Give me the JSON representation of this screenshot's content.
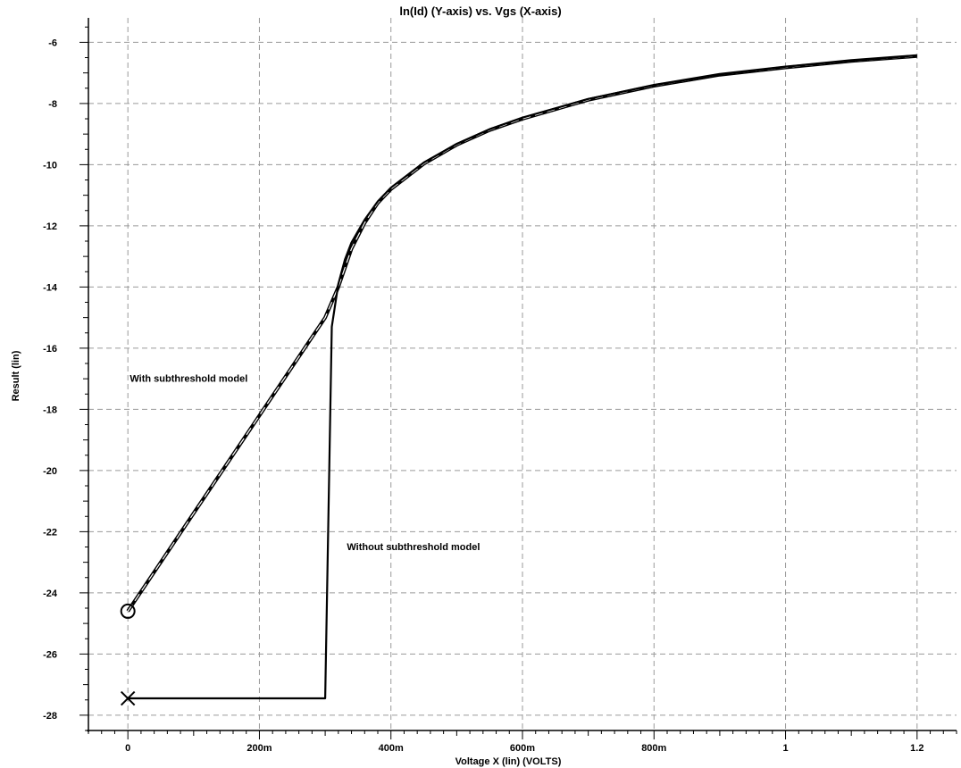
{
  "chart_data": {
    "type": "line",
    "title": "ln(Id) (Y-axis) vs. Vgs (X-axis)",
    "xlabel": "Voltage X (lin) (VOLTS)",
    "ylabel": "Result (lin)",
    "xlim": [
      -0.06,
      1.26
    ],
    "ylim": [
      -28.5,
      -5.2
    ],
    "grid": true,
    "x_ticks": [
      {
        "value": 0,
        "label": "0"
      },
      {
        "value": 0.2,
        "label": "200m"
      },
      {
        "value": 0.4,
        "label": "400m"
      },
      {
        "value": 0.6,
        "label": "600m"
      },
      {
        "value": 0.8,
        "label": "800m"
      },
      {
        "value": 1.0,
        "label": "1"
      },
      {
        "value": 1.2,
        "label": "1.2"
      }
    ],
    "y_ticks": [
      {
        "value": -6,
        "label": "-6"
      },
      {
        "value": -8,
        "label": "-8"
      },
      {
        "value": -10,
        "label": "-10"
      },
      {
        "value": -12,
        "label": "-12"
      },
      {
        "value": -14,
        "label": "-14"
      },
      {
        "value": -16,
        "label": "-16"
      },
      {
        "value": -18,
        "label": "-18"
      },
      {
        "value": -20,
        "label": "-20"
      },
      {
        "value": -22,
        "label": "-22"
      },
      {
        "value": -24,
        "label": "-24"
      },
      {
        "value": -26,
        "label": "-26"
      },
      {
        "value": -28,
        "label": "-28"
      }
    ],
    "series": [
      {
        "marker": "circle",
        "line_style": "dashed-white-on-black",
        "x": [
          0.0,
          0.1,
          0.2,
          0.3,
          0.32,
          0.34,
          0.36,
          0.38,
          0.4,
          0.45,
          0.5,
          0.55,
          0.6,
          0.7,
          0.8,
          0.9,
          1.0,
          1.1,
          1.2
        ],
        "y": [
          -24.6,
          -21.4,
          -18.2,
          -15.0,
          -14.0,
          -12.75,
          -11.9,
          -11.25,
          -10.8,
          -9.97,
          -9.35,
          -8.87,
          -8.5,
          -7.88,
          -7.42,
          -7.06,
          -6.82,
          -6.61,
          -6.45
        ]
      },
      {
        "marker": "x",
        "line_style": "solid",
        "x": [
          0.0,
          0.3,
          0.31,
          0.32,
          0.33,
          0.34,
          0.36,
          0.38,
          0.4,
          0.45,
          0.5,
          0.55,
          0.6,
          0.7,
          0.8,
          0.9,
          1.0,
          1.1,
          1.2
        ],
        "y": [
          -27.45,
          -27.45,
          -15.3,
          -13.9,
          -13.1,
          -12.55,
          -11.8,
          -11.2,
          -10.75,
          -9.93,
          -9.32,
          -8.84,
          -8.46,
          -7.85,
          -7.4,
          -7.05,
          -6.8,
          -6.6,
          -6.43
        ]
      }
    ],
    "annotations": [
      {
        "text": "With subthreshold model",
        "x": 0.003,
        "y": -17.1
      },
      {
        "text": "Without subthreshold model",
        "x": 0.333,
        "y": -22.6
      }
    ]
  }
}
